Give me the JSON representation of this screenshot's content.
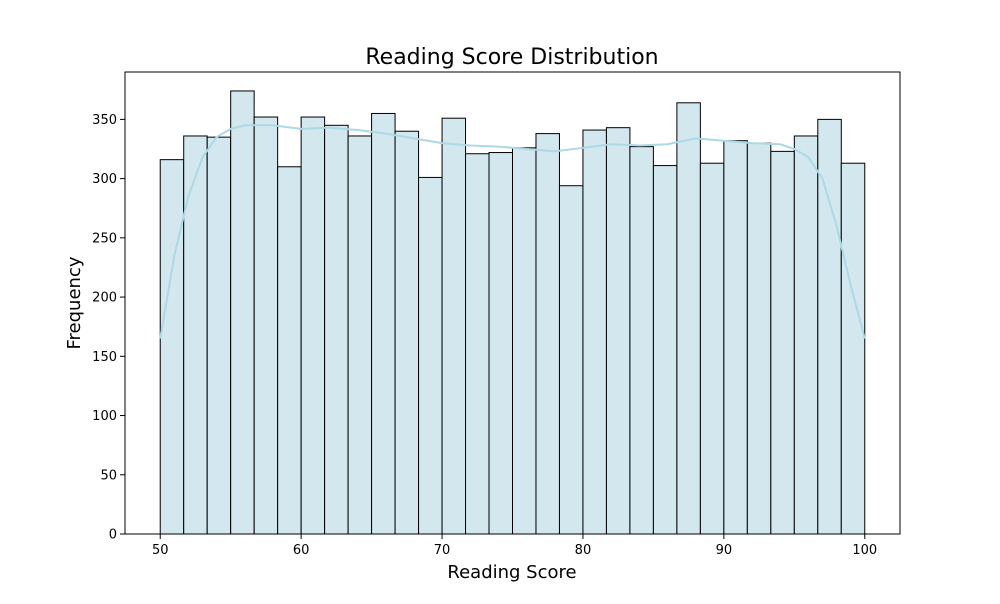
{
  "chart_data": {
    "type": "bar",
    "title": "Reading Score Distribution",
    "xlabel": "Reading Score",
    "ylabel": "Frequency",
    "xlim": [
      47.5,
      102.5
    ],
    "ylim": [
      0,
      390
    ],
    "x_ticks": [
      50,
      60,
      70,
      80,
      90,
      100
    ],
    "y_ticks": [
      0,
      50,
      100,
      150,
      200,
      250,
      300,
      350
    ],
    "bin_range": [
      50,
      100
    ],
    "bin_count": 30,
    "values": [
      316,
      336,
      335,
      374,
      352,
      310,
      352,
      345,
      336,
      355,
      340,
      301,
      351,
      321,
      322,
      326,
      338,
      294,
      341,
      343,
      327,
      311,
      364,
      313,
      332,
      330,
      323,
      336,
      350,
      313
    ],
    "kde": {
      "x": [
        50,
        51,
        52,
        53,
        54,
        55,
        56,
        58,
        60,
        62,
        64,
        66,
        68,
        70,
        72,
        74,
        76,
        78,
        80,
        82,
        84,
        86,
        88,
        90,
        92,
        94,
        95,
        96,
        97,
        98,
        99,
        100
      ],
      "y": [
        165,
        235,
        285,
        318,
        335,
        342,
        345,
        345,
        342,
        343,
        341,
        338,
        334,
        330,
        328,
        327,
        325,
        323,
        326,
        329,
        328,
        329,
        334,
        332,
        330,
        329,
        325,
        318,
        300,
        260,
        210,
        165
      ]
    },
    "colors": {
      "bar_fill": "#d3e8ee",
      "bar_edge": "#000000",
      "kde_line": "#add8e6"
    }
  }
}
